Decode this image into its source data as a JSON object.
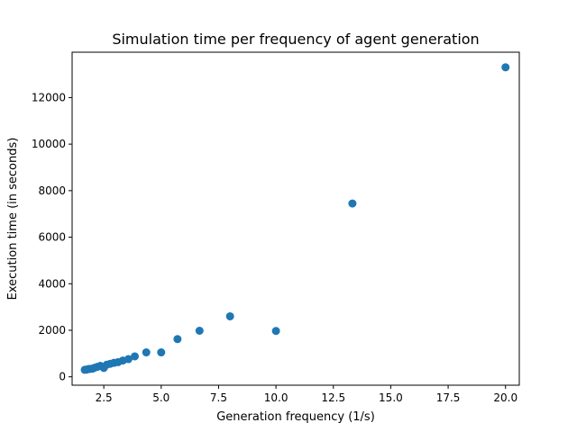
{
  "chart_data": {
    "type": "scatter",
    "title": "Simulation time per frequency of agent generation",
    "xlabel": "Generation frequency (1/s)",
    "ylabel": "Execution time (in seconds)",
    "xlim": [
      1.12,
      20.6
    ],
    "ylim": [
      -360,
      13950
    ],
    "xticks": [
      2.5,
      5.0,
      7.5,
      10.0,
      12.5,
      15.0,
      17.5,
      20.0
    ],
    "xtick_labels": [
      "2.5",
      "5.0",
      "7.5",
      "10.0",
      "12.5",
      "15.0",
      "17.5",
      "20.0"
    ],
    "yticks": [
      0,
      2000,
      4000,
      6000,
      8000,
      10000,
      12000
    ],
    "ytick_labels": [
      "0",
      "2000",
      "4000",
      "6000",
      "8000",
      "10000",
      "12000"
    ],
    "grid": false,
    "legend": false,
    "marker_color": "#1f77b4",
    "series": [
      {
        "points": [
          [
            1.67,
            300
          ],
          [
            1.75,
            310
          ],
          [
            1.82,
            330
          ],
          [
            1.9,
            340
          ],
          [
            2.0,
            350
          ],
          [
            2.1,
            390
          ],
          [
            2.22,
            430
          ],
          [
            2.35,
            470
          ],
          [
            2.5,
            380
          ],
          [
            2.63,
            520
          ],
          [
            2.78,
            560
          ],
          [
            2.94,
            600
          ],
          [
            3.12,
            630
          ],
          [
            3.33,
            700
          ],
          [
            3.57,
            760
          ],
          [
            3.85,
            880
          ],
          [
            4.35,
            1050
          ],
          [
            5.0,
            1050
          ],
          [
            5.71,
            1620
          ],
          [
            6.67,
            1980
          ],
          [
            8.0,
            2600
          ],
          [
            10.0,
            1970
          ],
          [
            13.33,
            7450
          ],
          [
            20.0,
            13300
          ]
        ]
      }
    ]
  }
}
